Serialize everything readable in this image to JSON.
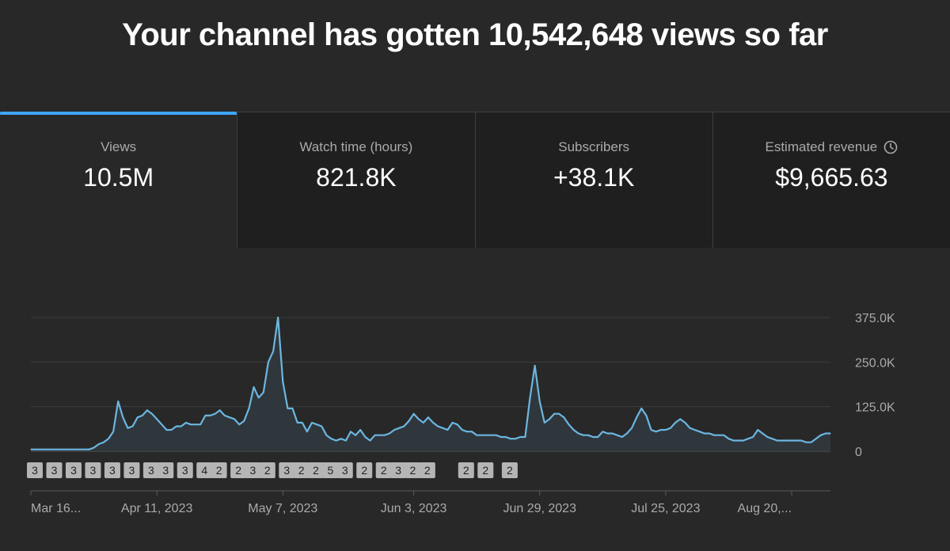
{
  "headline": "Your channel has gotten 10,542,648 views so far",
  "tabs": [
    {
      "label": "Views",
      "value": "10.5M",
      "active": true
    },
    {
      "label": "Watch time (hours)",
      "value": "821.8K",
      "active": false
    },
    {
      "label": "Subscribers",
      "value": "+38.1K",
      "active": false
    },
    {
      "label": "Estimated revenue",
      "value": "$9,665.63",
      "active": false,
      "icon": "clock-icon"
    }
  ],
  "colors": {
    "accent": "#3ea6ff",
    "line": "#6cb6e0",
    "background": "#282828"
  },
  "chart_data": {
    "type": "area",
    "series": [
      {
        "name": "Views",
        "values": [
          5000,
          5000,
          5000,
          5000,
          5000,
          5000,
          5000,
          5000,
          5000,
          5000,
          5000,
          5000,
          5000,
          10000,
          20000,
          25000,
          35000,
          55000,
          140000,
          95000,
          65000,
          70000,
          95000,
          100000,
          115000,
          105000,
          90000,
          75000,
          60000,
          60000,
          70000,
          70000,
          80000,
          75000,
          75000,
          75000,
          100000,
          100000,
          105000,
          115000,
          100000,
          95000,
          90000,
          75000,
          85000,
          120000,
          180000,
          150000,
          165000,
          250000,
          280000,
          375000,
          195000,
          120000,
          120000,
          80000,
          80000,
          55000,
          80000,
          75000,
          70000,
          45000,
          35000,
          30000,
          35000,
          30000,
          55000,
          45000,
          60000,
          40000,
          30000,
          45000,
          45000,
          45000,
          50000,
          60000,
          65000,
          70000,
          85000,
          105000,
          90000,
          80000,
          95000,
          80000,
          70000,
          65000,
          60000,
          80000,
          75000,
          60000,
          55000,
          55000,
          45000,
          45000,
          45000,
          45000,
          45000,
          40000,
          40000,
          35000,
          35000,
          40000,
          40000,
          150000,
          240000,
          140000,
          80000,
          90000,
          105000,
          105000,
          95000,
          75000,
          60000,
          50000,
          45000,
          45000,
          40000,
          40000,
          55000,
          50000,
          50000,
          45000,
          40000,
          50000,
          65000,
          95000,
          120000,
          100000,
          60000,
          55000,
          60000,
          60000,
          65000,
          80000,
          90000,
          80000,
          65000,
          60000,
          55000,
          50000,
          50000,
          45000,
          45000,
          45000,
          35000,
          30000,
          30000,
          30000,
          35000,
          40000,
          60000,
          50000,
          40000,
          35000,
          30000,
          30000,
          30000,
          30000,
          30000,
          30000,
          25000,
          25000,
          35000,
          45000,
          50000,
          50000
        ]
      }
    ],
    "x_tick_labels": [
      "Mar 16...",
      "Apr 11, 2023",
      "May 7, 2023",
      "Jun 3, 2023",
      "Jun 29, 2023",
      "Jul 25, 2023",
      "Aug 20,..."
    ],
    "x_tick_positions": [
      0,
      26,
      52,
      79,
      105,
      131,
      157
    ],
    "y_tick_labels": [
      "375.0K",
      "250.0K",
      "125.0K",
      "0"
    ],
    "y_tick_values": [
      375000,
      250000,
      125000,
      0
    ],
    "ylim": [
      0,
      375000
    ],
    "grid": true,
    "markers": [
      {
        "label": "3",
        "index": 0
      },
      {
        "label": "3",
        "index": 4
      },
      {
        "label": "3",
        "index": 8
      },
      {
        "label": "3",
        "index": 12
      },
      {
        "label": "3",
        "index": 16
      },
      {
        "label": "3",
        "index": 20
      },
      {
        "label": "3",
        "index": 24
      },
      {
        "label": "3",
        "index": 27
      },
      {
        "label": "3",
        "index": 31
      },
      {
        "label": "4",
        "index": 35
      },
      {
        "label": "2",
        "index": 38
      },
      {
        "label": "2",
        "index": 42
      },
      {
        "label": "3",
        "index": 45
      },
      {
        "label": "2",
        "index": 48
      },
      {
        "label": "3",
        "index": 52
      },
      {
        "label": "2",
        "index": 55
      },
      {
        "label": "2",
        "index": 58
      },
      {
        "label": "5",
        "index": 61
      },
      {
        "label": "3",
        "index": 64
      },
      {
        "label": "2",
        "index": 68
      },
      {
        "label": "2",
        "index": 72
      },
      {
        "label": "3",
        "index": 75
      },
      {
        "label": "2",
        "index": 78
      },
      {
        "label": "2",
        "index": 81
      },
      {
        "label": "2",
        "index": 89
      },
      {
        "label": "2",
        "index": 93
      },
      {
        "label": "2",
        "index": 98
      }
    ]
  }
}
